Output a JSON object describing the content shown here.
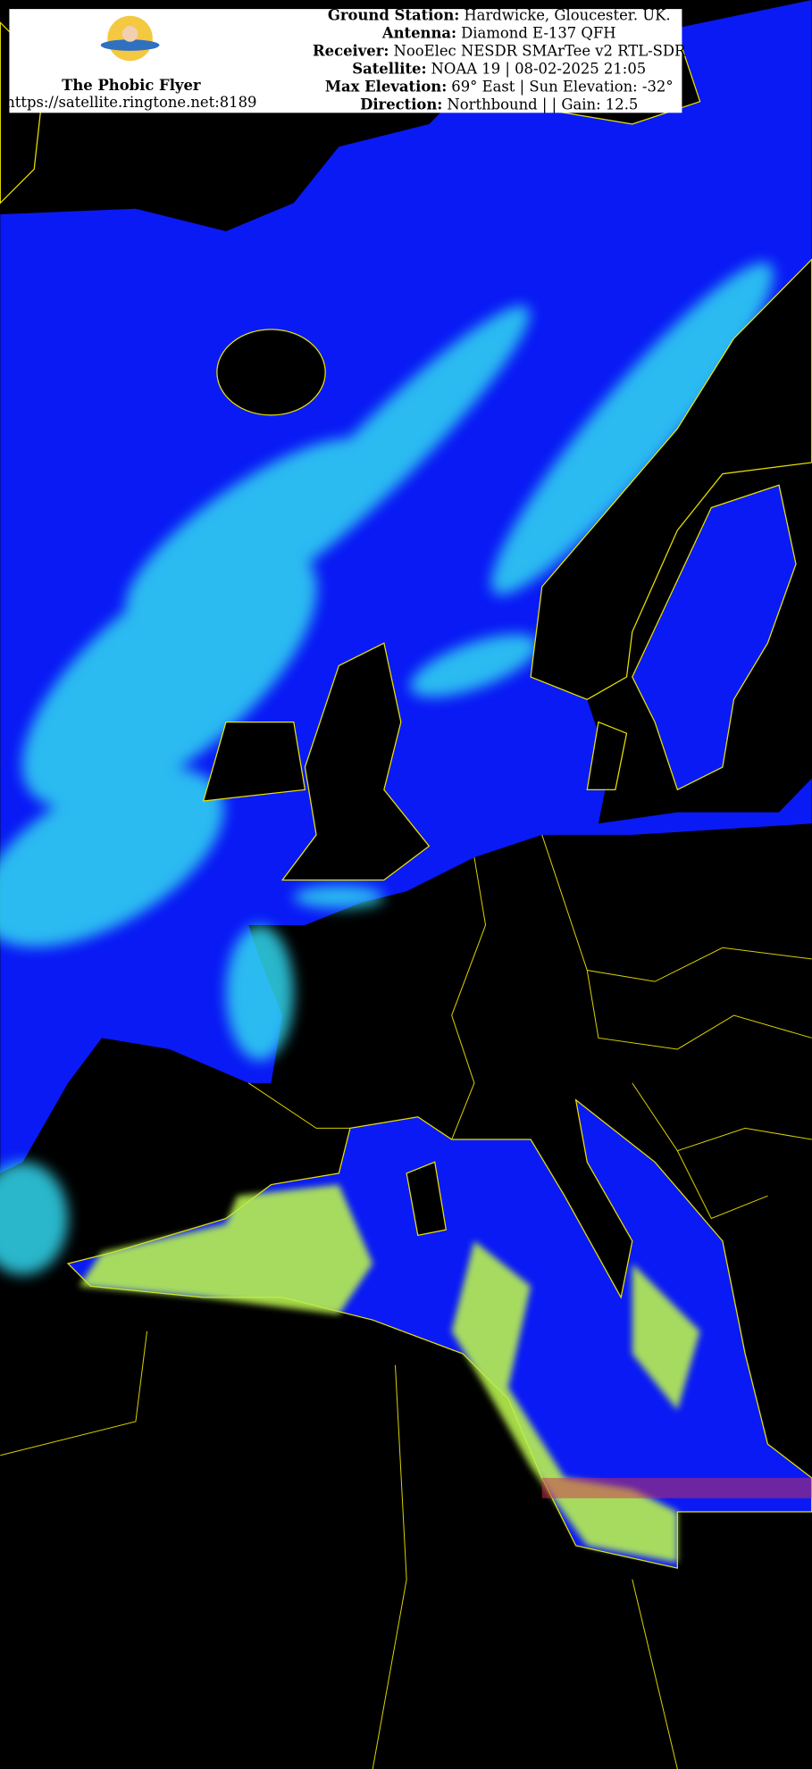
{
  "header": {
    "site_name": "The Phobic Flyer",
    "url": "https://satellite.ringtone.net:8189",
    "fields": [
      {
        "label": "Ground Station:",
        "value": "Hardwicke, Gloucester. UK."
      },
      {
        "label": "Antenna:",
        "value": "Diamond E-137 QFH"
      },
      {
        "label": "Receiver:",
        "value": "NooElec NESDR SMArTee v2 RTL-SDR"
      },
      {
        "label": "Satellite:",
        "value": "NOAA 19 | 08-02-2025 21:05"
      },
      {
        "label": "Max Elevation:",
        "value": "69° East | Sun Elevation: -32°"
      },
      {
        "label": "Direction:",
        "value": "Northbound | | Gain: 12.5"
      }
    ]
  }
}
